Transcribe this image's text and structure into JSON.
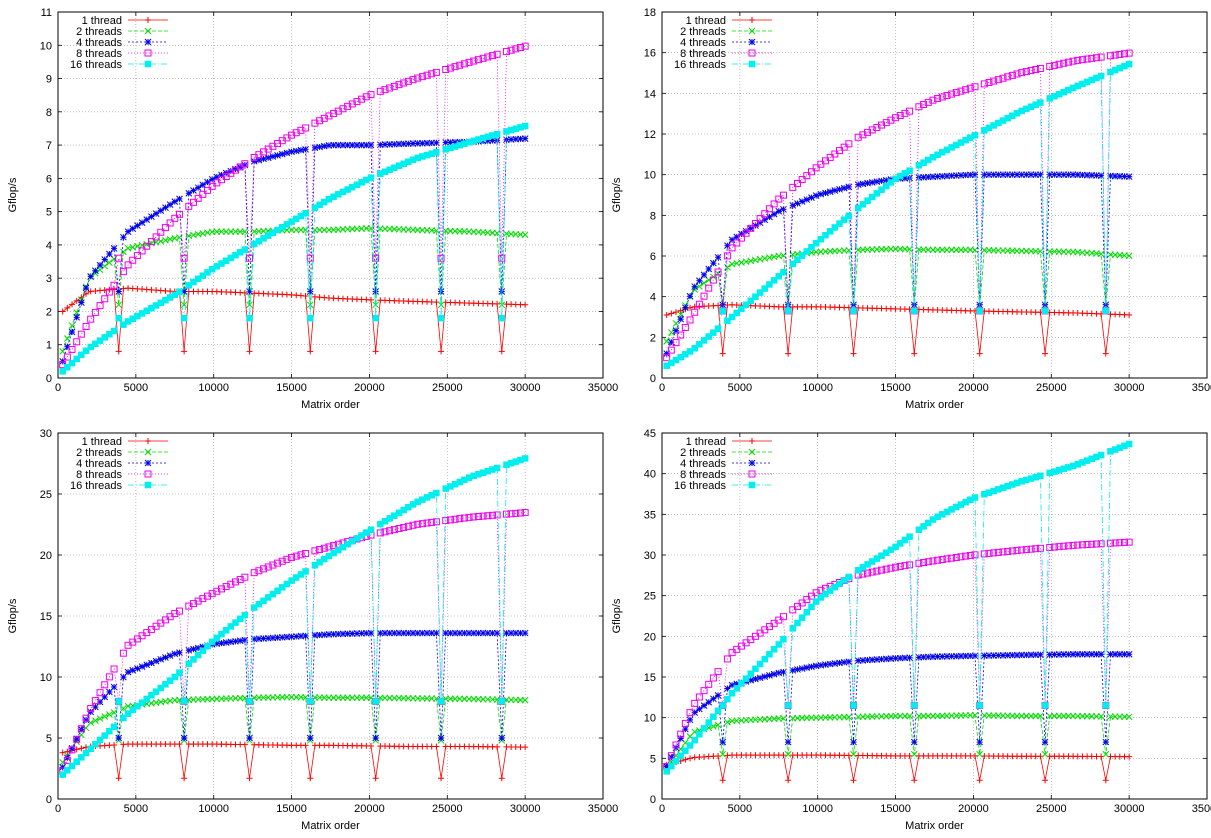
{
  "colors": {
    "1 thread": "#ff0000",
    "2 threads": "#00dd00",
    "4 threads": "#0000ee",
    "8 threads": "#ee00ee",
    "16 threads": "#00eeee"
  },
  "chart_data": [
    {
      "type": "line",
      "xlabel": "Matrix order",
      "ylabel": "Gflop/s",
      "xlim": [
        0,
        35000
      ],
      "ylim": [
        0,
        11
      ],
      "xticks": [
        0,
        5000,
        10000,
        15000,
        20000,
        25000,
        30000,
        35000
      ],
      "yticks": [
        0,
        1,
        2,
        3,
        4,
        5,
        6,
        7,
        8,
        9,
        10,
        11
      ],
      "grid": true,
      "legend": "top-left",
      "series": [
        {
          "name": "1 thread",
          "values": [
            2.0,
            2.6,
            2.7,
            2.6,
            2.6,
            2.55,
            2.5,
            2.4,
            2.35,
            2.3,
            2.25,
            2.2
          ],
          "dips_at": [
            4000,
            8100,
            12200,
            16300,
            20400,
            24500,
            28600
          ],
          "dip_value": 0.8
        },
        {
          "name": "2 threads",
          "values": [
            0.8,
            3.0,
            3.9,
            4.2,
            4.4,
            4.4,
            4.45,
            4.45,
            4.5,
            4.45,
            4.4,
            4.3
          ],
          "dips_at": [
            4000,
            8100,
            12200,
            16300,
            20400,
            24500,
            28600
          ],
          "dip_value": 2.2
        },
        {
          "name": "4 threads",
          "values": [
            0.5,
            3.0,
            4.4,
            5.3,
            6.0,
            6.5,
            6.8,
            7.0,
            7.0,
            7.05,
            7.1,
            7.2
          ],
          "dips_at": [
            4000,
            8100,
            12200,
            16300,
            20400,
            24500,
            28600
          ],
          "dip_value": 2.6
        },
        {
          "name": "8 threads",
          "values": [
            0.4,
            1.7,
            3.4,
            4.8,
            5.8,
            6.6,
            7.3,
            7.9,
            8.5,
            9.0,
            9.5,
            10.0
          ],
          "dips_at": [
            4000,
            8100,
            12200,
            16300,
            20400,
            24500,
            28600
          ],
          "dip_value": 3.6
        },
        {
          "name": "16 threads",
          "values": [
            0.2,
            0.9,
            1.7,
            2.5,
            3.3,
            4.0,
            4.7,
            5.4,
            6.0,
            6.6,
            7.1,
            7.6
          ],
          "dips_at": [
            4000,
            8100,
            12200,
            16300,
            20400,
            24500,
            28600
          ],
          "dip_value": 1.8
        }
      ],
      "x": [
        300,
        2000,
        4500,
        7500,
        10000,
        12500,
        15000,
        17500,
        20000,
        23000,
        26500,
        30200
      ]
    },
    {
      "type": "line",
      "xlabel": "Matrix order",
      "ylabel": "Gflop/s",
      "xlim": [
        0,
        35000
      ],
      "ylim": [
        0,
        18
      ],
      "xticks": [
        0,
        5000,
        10000,
        15000,
        20000,
        25000,
        30000,
        35000
      ],
      "yticks": [
        0,
        2,
        4,
        6,
        8,
        10,
        12,
        14,
        16,
        18
      ],
      "grid": true,
      "legend": "top-left",
      "series": [
        {
          "name": "1 thread",
          "values": [
            3.1,
            3.5,
            3.6,
            3.5,
            3.5,
            3.45,
            3.4,
            3.35,
            3.3,
            3.25,
            3.2,
            3.1
          ],
          "dips_at": [
            4000,
            8100,
            12200,
            16300,
            20400,
            24500,
            28600
          ],
          "dip_value": 1.2
        },
        {
          "name": "2 threads",
          "values": [
            1.8,
            4.3,
            5.6,
            6.0,
            6.2,
            6.3,
            6.35,
            6.3,
            6.3,
            6.25,
            6.2,
            6.0
          ],
          "dips_at": [
            4000,
            8100,
            12200,
            16300,
            20400,
            24500,
            28600
          ],
          "dip_value": 3.5
        },
        {
          "name": "4 threads",
          "values": [
            1.2,
            4.4,
            6.8,
            8.2,
            9.0,
            9.5,
            9.8,
            9.9,
            10.0,
            10.0,
            10.0,
            9.9
          ],
          "dips_at": [
            4000,
            8100,
            12200,
            16300,
            20400,
            24500,
            28600
          ],
          "dip_value": 3.6
        },
        {
          "name": "8 threads",
          "values": [
            1.0,
            3.1,
            6.4,
            8.8,
            10.4,
            11.8,
            12.8,
            13.7,
            14.3,
            15.0,
            15.6,
            16.0
          ],
          "dips_at": [
            4000,
            8100,
            12200,
            16300,
            20400,
            24500,
            28600
          ],
          "dip_value": 3.3
        },
        {
          "name": "16 threads",
          "values": [
            0.6,
            1.4,
            3.0,
            5.0,
            6.7,
            8.3,
            9.8,
            10.9,
            11.9,
            13.1,
            14.3,
            15.5
          ],
          "dips_at": [
            4000,
            8100,
            12200,
            16300,
            20400,
            24500,
            28600
          ],
          "dip_value": 3.3
        }
      ],
      "x": [
        300,
        2000,
        4500,
        7500,
        10000,
        12500,
        15000,
        17500,
        20000,
        23000,
        26500,
        30200
      ]
    },
    {
      "type": "line",
      "xlabel": "Matrix order",
      "ylabel": "Gflop/s",
      "xlim": [
        0,
        35000
      ],
      "ylim": [
        0,
        30
      ],
      "xticks": [
        0,
        5000,
        10000,
        15000,
        20000,
        25000,
        30000,
        35000
      ],
      "yticks": [
        0,
        5,
        10,
        15,
        20,
        25,
        30
      ],
      "grid": true,
      "legend": "top-left",
      "series": [
        {
          "name": "1 thread",
          "values": [
            3.8,
            4.3,
            4.5,
            4.5,
            4.5,
            4.45,
            4.4,
            4.4,
            4.35,
            4.3,
            4.3,
            4.25
          ],
          "dips_at": [
            4000,
            8100,
            12200,
            16300,
            20400,
            24500,
            28600
          ],
          "dip_value": 1.7
        },
        {
          "name": "2 threads",
          "values": [
            3.0,
            6.2,
            7.6,
            8.1,
            8.2,
            8.3,
            8.35,
            8.3,
            8.3,
            8.25,
            8.2,
            8.1
          ],
          "dips_at": [
            4000,
            8100,
            12200,
            16300,
            20400,
            24500,
            28600
          ],
          "dip_value": 4.8
        },
        {
          "name": "4 threads",
          "values": [
            2.6,
            7.0,
            10.4,
            11.9,
            12.7,
            13.1,
            13.3,
            13.5,
            13.6,
            13.6,
            13.6,
            13.6
          ],
          "dips_at": [
            4000,
            8100,
            12200,
            16300,
            20400,
            24500,
            28600
          ],
          "dip_value": 5.0
        },
        {
          "name": "8 threads",
          "values": [
            2.3,
            7.2,
            12.6,
            15.2,
            16.9,
            18.5,
            19.8,
            20.7,
            21.6,
            22.5,
            23.1,
            23.5
          ],
          "dips_at": [
            4000,
            8100,
            12200,
            16300,
            20400,
            24500,
            28600
          ],
          "dip_value": 8.0
        },
        {
          "name": "16 threads",
          "values": [
            2.0,
            4.0,
            7.0,
            10.0,
            13.0,
            15.6,
            17.9,
            20.0,
            22.0,
            24.3,
            26.4,
            28.0
          ],
          "dips_at": [
            4000,
            8100,
            12200,
            16300,
            20400,
            24500,
            28600
          ],
          "dip_value": 8.0
        }
      ],
      "x": [
        300,
        2000,
        4500,
        7500,
        10000,
        12500,
        15000,
        17500,
        20000,
        23000,
        26500,
        30200
      ]
    },
    {
      "type": "line",
      "xlabel": "Matrix order",
      "ylabel": "Gflop/s",
      "xlim": [
        0,
        35000
      ],
      "ylim": [
        0,
        45
      ],
      "xticks": [
        0,
        5000,
        10000,
        15000,
        20000,
        25000,
        30000,
        35000
      ],
      "yticks": [
        0,
        5,
        10,
        15,
        20,
        25,
        30,
        35,
        40,
        45
      ],
      "grid": true,
      "legend": "top-left",
      "series": [
        {
          "name": "1 thread",
          "values": [
            4.2,
            5.1,
            5.4,
            5.4,
            5.4,
            5.35,
            5.3,
            5.3,
            5.3,
            5.25,
            5.25,
            5.2
          ],
          "dips_at": [
            4000,
            8100,
            12200,
            16300,
            20400,
            24500,
            28600
          ],
          "dip_value": 2.3
        },
        {
          "name": "2 threads",
          "values": [
            3.8,
            8.2,
            9.6,
            9.9,
            10.0,
            10.1,
            10.2,
            10.2,
            10.3,
            10.2,
            10.2,
            10.1
          ],
          "dips_at": [
            4000,
            8100,
            12200,
            16300,
            20400,
            24500,
            28600
          ],
          "dip_value": 5.5
        },
        {
          "name": "4 threads",
          "values": [
            4.0,
            10.5,
            14.0,
            15.5,
            16.4,
            17.0,
            17.3,
            17.5,
            17.6,
            17.7,
            17.8,
            17.8
          ],
          "dips_at": [
            4000,
            8100,
            12200,
            16300,
            20400,
            24500,
            28600
          ],
          "dip_value": 7.0
        },
        {
          "name": "8 threads",
          "values": [
            4.0,
            11.5,
            18.0,
            22.0,
            25.5,
            27.5,
            28.5,
            29.3,
            30.0,
            30.6,
            31.2,
            31.6
          ],
          "dips_at": [
            4000,
            8100,
            12200,
            16300,
            20400,
            24500,
            28600
          ],
          "dip_value": 11.5
        },
        {
          "name": "16 threads",
          "values": [
            3.4,
            7.0,
            13.0,
            19.0,
            24.5,
            28.0,
            31.0,
            34.5,
            37.0,
            39.0,
            41.0,
            43.8
          ],
          "dips_at": [
            4000,
            8100,
            12200,
            16300,
            20400,
            24500,
            28600
          ],
          "dip_value": 11.5
        }
      ],
      "x": [
        300,
        2000,
        4500,
        7500,
        10000,
        12500,
        15000,
        17500,
        20000,
        23000,
        26500,
        30200
      ]
    }
  ]
}
